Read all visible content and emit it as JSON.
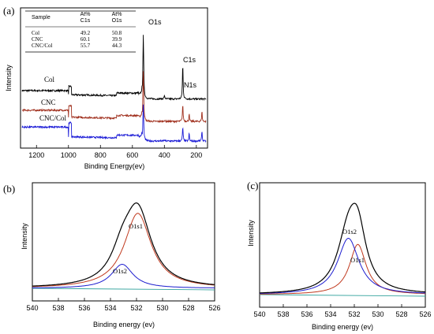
{
  "panels": {
    "a": {
      "label": "(a)"
    },
    "b": {
      "label": "(b)"
    },
    "c": {
      "label": "(c)"
    }
  },
  "chart_data": [
    {
      "id": "a",
      "type": "line",
      "xlabel": "Binding Energy(ev)",
      "ylabel": "Intensity",
      "xlim": [
        1300,
        130
      ],
      "x_ticks": [
        1200,
        1000,
        800,
        600,
        400,
        200
      ],
      "y_ticks_visible": false,
      "series": [
        {
          "name": "Col",
          "color": "#000000",
          "baseline": 0.38,
          "o1s_height": 0.46,
          "c1s_height": 0.25,
          "offset": 0
        },
        {
          "name": "CNC",
          "color": "#a0301e",
          "baseline": 0.22,
          "o1s_height": 0.36,
          "c1s_height": 0.12,
          "offset": 1
        },
        {
          "name": "CNC/Col",
          "color": "#1a1ad6",
          "baseline": 0.08,
          "o1s_height": 0.26,
          "c1s_height": 0.1,
          "offset": 2
        }
      ],
      "peak_labels": [
        "O1s",
        "N1s",
        "C1s"
      ],
      "table": {
        "headers": [
          "Sample",
          "At%\nC1s",
          "At%\nO1s"
        ],
        "rows": [
          [
            "Col",
            "49.2",
            "50.8"
          ],
          [
            "CNC",
            "60.1",
            "39.9"
          ],
          [
            "CNC/Col",
            "55.7",
            "44.3"
          ]
        ]
      }
    },
    {
      "id": "b",
      "type": "line",
      "xlabel": "Binding energy (ev)",
      "ylabel": "Intensity",
      "xlim": [
        540,
        526
      ],
      "x_ticks": [
        540,
        538,
        536,
        534,
        532,
        530,
        528,
        526
      ],
      "peaks": [
        {
          "name": "O1s1",
          "center": 531.9,
          "height": 0.78,
          "width": 1.25,
          "color": "#c0391e"
        },
        {
          "name": "O1s2",
          "center": 533.1,
          "height": 0.25,
          "width": 1.0,
          "color": "#1c1ccf"
        }
      ],
      "envelope_color": "#000000",
      "background_color": "#3aa6a0"
    },
    {
      "id": "c",
      "type": "line",
      "xlabel": "Binding energy (ev)",
      "ylabel": "Intensity",
      "xlim": [
        540,
        526
      ],
      "x_ticks": [
        540,
        538,
        536,
        534,
        532,
        530,
        528,
        526
      ],
      "peaks": [
        {
          "name": "O1s1",
          "center": 531.7,
          "height": 0.49,
          "width": 0.85,
          "color": "#c0391e"
        },
        {
          "name": "O1s2",
          "center": 532.5,
          "height": 0.55,
          "width": 1.1,
          "color": "#1c1ccf"
        }
      ],
      "envelope_color": "#000000",
      "background_color": "#3aa6a0"
    }
  ]
}
